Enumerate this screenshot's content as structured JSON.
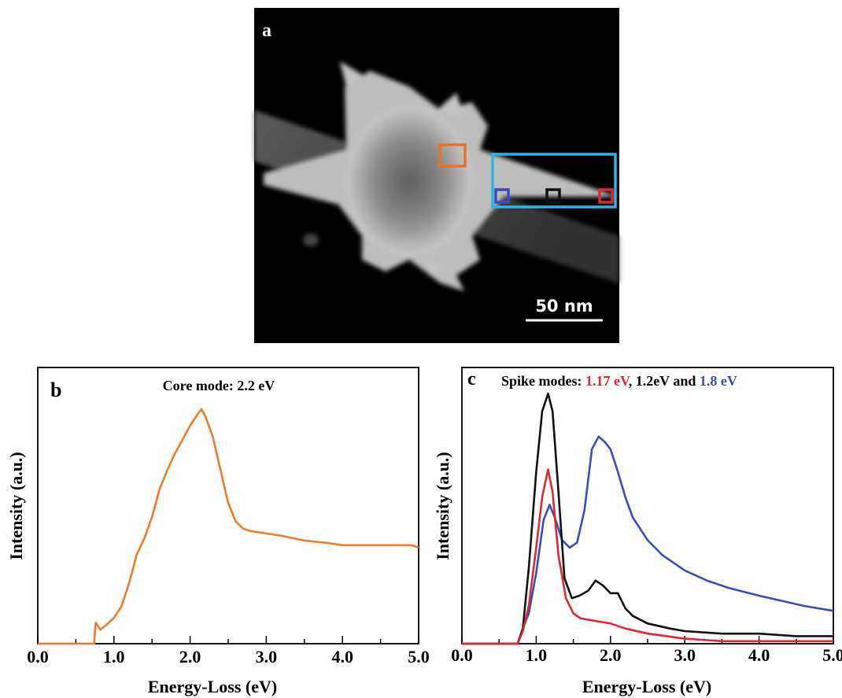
{
  "panel_a": {
    "label": "a",
    "scale_bar_label": "50 nm",
    "colors": {
      "core_box": "#f07023",
      "spike_region": "#2bb5e8",
      "tip_base": "#3a4dbf",
      "tip_mid": "#111111",
      "tip_end": "#e0282f"
    }
  },
  "chart_data": [
    {
      "type": "line",
      "panel_label": "b",
      "title": "Core mode: 2.2 eV",
      "xlabel": "Energy-Loss (eV)",
      "ylabel": "Intensity (a.u.)",
      "xlim": [
        0,
        5
      ],
      "ylim": [
        0,
        1
      ],
      "xticks": [
        "0.0",
        "1.0",
        "2.0",
        "3.0",
        "4.0",
        "5.0"
      ],
      "series": [
        {
          "color": "#f07b2a",
          "x": [
            0.0,
            0.74,
            0.76,
            0.82,
            0.9,
            1.0,
            1.1,
            1.2,
            1.3,
            1.4,
            1.5,
            1.6,
            1.7,
            1.8,
            1.9,
            2.0,
            2.1,
            2.15,
            2.2,
            2.3,
            2.4,
            2.5,
            2.6,
            2.7,
            2.8,
            3.0,
            3.2,
            3.5,
            3.8,
            4.0,
            4.3,
            4.6,
            4.9,
            5.0
          ],
          "y": [
            0.0,
            0.0,
            0.09,
            0.06,
            0.08,
            0.11,
            0.16,
            0.26,
            0.38,
            0.45,
            0.54,
            0.66,
            0.74,
            0.81,
            0.87,
            0.93,
            0.98,
            1.0,
            0.97,
            0.88,
            0.74,
            0.6,
            0.52,
            0.49,
            0.48,
            0.47,
            0.46,
            0.44,
            0.43,
            0.42,
            0.42,
            0.42,
            0.42,
            0.41
          ]
        }
      ]
    },
    {
      "type": "line",
      "panel_label": "c",
      "title_parts": [
        {
          "text": "Spike modes: ",
          "color": "#000000"
        },
        {
          "text": "1.17 eV",
          "color": "#e0282f"
        },
        {
          "text": ", 1.2eV and ",
          "color": "#000000"
        },
        {
          "text": "1.8 eV",
          "color": "#3a4dbf"
        }
      ],
      "xlabel": "Energy-Loss (eV)",
      "ylabel": "Intensity (a.u.)",
      "xlim": [
        0,
        5
      ],
      "ylim": [
        0,
        1
      ],
      "xticks": [
        "0.0",
        "1.0",
        "2.0",
        "3.0",
        "4.0",
        "5.0"
      ],
      "series": [
        {
          "color": "#3a4dbf",
          "x": [
            0.0,
            0.75,
            0.82,
            0.9,
            1.0,
            1.1,
            1.18,
            1.25,
            1.35,
            1.45,
            1.55,
            1.65,
            1.75,
            1.84,
            1.92,
            2.0,
            2.1,
            2.2,
            2.3,
            2.5,
            2.7,
            3.0,
            3.3,
            3.6,
            4.0,
            4.3,
            4.6,
            5.0
          ],
          "y": [
            0.0,
            0.0,
            0.06,
            0.12,
            0.28,
            0.49,
            0.55,
            0.5,
            0.41,
            0.38,
            0.4,
            0.53,
            0.77,
            0.82,
            0.8,
            0.77,
            0.68,
            0.58,
            0.5,
            0.41,
            0.35,
            0.29,
            0.25,
            0.22,
            0.19,
            0.17,
            0.15,
            0.13
          ]
        },
        {
          "color": "#111111",
          "x": [
            0.0,
            0.75,
            0.82,
            0.9,
            1.0,
            1.08,
            1.16,
            1.22,
            1.3,
            1.38,
            1.48,
            1.58,
            1.7,
            1.8,
            1.9,
            2.0,
            2.1,
            2.2,
            2.3,
            2.5,
            2.8,
            3.0,
            3.5,
            4.0,
            4.5,
            5.0
          ],
          "y": [
            0.0,
            0.0,
            0.06,
            0.3,
            0.68,
            0.92,
            0.99,
            0.92,
            0.6,
            0.26,
            0.18,
            0.19,
            0.21,
            0.25,
            0.23,
            0.2,
            0.2,
            0.14,
            0.11,
            0.08,
            0.06,
            0.05,
            0.04,
            0.04,
            0.03,
            0.03
          ]
        },
        {
          "color": "#e0282f",
          "x": [
            0.0,
            0.75,
            0.82,
            0.9,
            1.0,
            1.08,
            1.16,
            1.22,
            1.3,
            1.4,
            1.5,
            1.6,
            1.8,
            2.0,
            2.2,
            2.5,
            3.0,
            3.5,
            4.0,
            4.5,
            5.0
          ],
          "y": [
            0.0,
            0.0,
            0.05,
            0.15,
            0.38,
            0.58,
            0.69,
            0.6,
            0.35,
            0.18,
            0.12,
            0.1,
            0.09,
            0.08,
            0.06,
            0.04,
            0.02,
            0.01,
            0.01,
            0.01,
            0.01
          ]
        }
      ]
    }
  ]
}
